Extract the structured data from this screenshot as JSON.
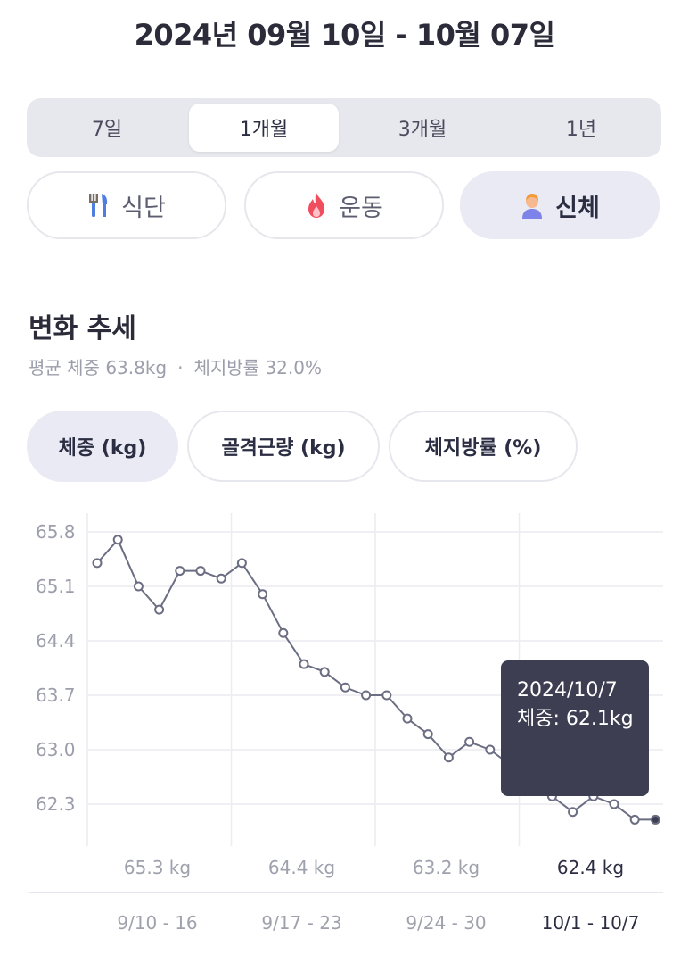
{
  "header": {
    "date_range": "2024년 09월 10일 - 10월 07일"
  },
  "period_tabs": [
    {
      "label": "7일",
      "active": false
    },
    {
      "label": "1개월",
      "active": true
    },
    {
      "label": "3개월",
      "active": false
    },
    {
      "label": "1년",
      "active": false
    }
  ],
  "category_tabs": [
    {
      "label": "식단",
      "icon": "fork-knife-icon",
      "active": false
    },
    {
      "label": "운동",
      "icon": "fire-icon",
      "active": false
    },
    {
      "label": "신체",
      "icon": "person-icon",
      "active": true
    }
  ],
  "trend": {
    "title": "변화 추세",
    "avg_weight": "평균 체중 63.8kg",
    "separator": "·",
    "body_fat": "체지방률 32.0%"
  },
  "metric_tabs": [
    {
      "label": "체중 (kg)",
      "active": true
    },
    {
      "label": "골격근량 (kg)",
      "active": false
    },
    {
      "label": "체지방률 (%)",
      "active": false
    }
  ],
  "tooltip": {
    "date": "2024/10/7",
    "value": "체중: 62.1kg"
  },
  "colors": {
    "line": "#6b6d82",
    "accent": "#3d3e52",
    "active_bg": "#e9eaf3"
  },
  "chart_data": {
    "type": "line",
    "y_ticks": [
      "65.8",
      "65.1",
      "64.4",
      "63.7",
      "63.0",
      "62.3"
    ],
    "ylim": [
      61.8,
      65.8
    ],
    "weeks": [
      {
        "range": "9/10 - 16",
        "avg": "65.3 kg"
      },
      {
        "range": "9/17 - 23",
        "avg": "64.4 kg"
      },
      {
        "range": "9/24 - 30",
        "avg": "63.2 kg"
      },
      {
        "range": "10/1 - 10/7",
        "avg": "62.4 kg"
      }
    ],
    "series": [
      {
        "values": [
          65.4,
          65.7,
          65.1,
          64.8,
          65.3,
          65.3,
          65.2,
          65.4,
          65.0,
          64.5,
          64.1,
          64.0,
          63.8,
          63.7,
          63.7,
          63.4,
          63.2,
          62.9,
          63.1,
          63.0,
          62.8,
          62.6,
          62.4,
          62.2,
          62.4,
          62.3,
          62.1,
          62.1
        ]
      }
    ]
  }
}
